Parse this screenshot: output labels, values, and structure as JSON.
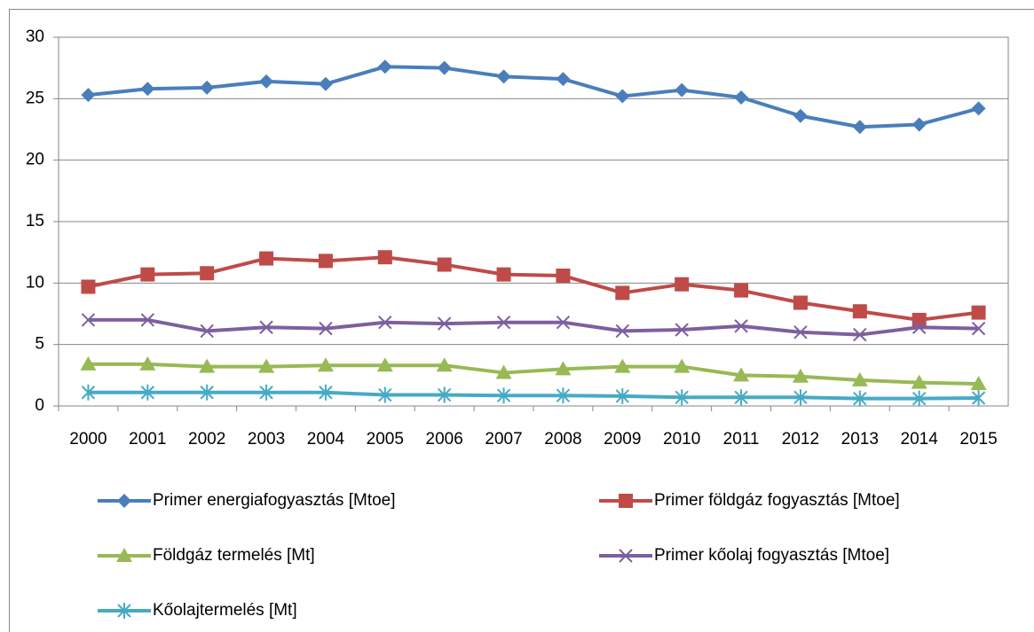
{
  "chart_data": {
    "type": "line",
    "categories": [
      "2000",
      "2001",
      "2002",
      "2003",
      "2004",
      "2005",
      "2006",
      "2007",
      "2008",
      "2009",
      "2010",
      "2011",
      "2012",
      "2013",
      "2014",
      "2015"
    ],
    "series": [
      {
        "name": "Primer energiafogyasztás [Mtoe]",
        "color": "#4a7ebb",
        "marker": "diamond",
        "values": [
          25.3,
          25.8,
          25.9,
          26.4,
          26.2,
          27.6,
          27.5,
          26.8,
          26.6,
          25.2,
          25.7,
          25.1,
          23.6,
          22.7,
          22.9,
          24.2
        ]
      },
      {
        "name": "Primer földgáz fogyasztás [Mtoe]",
        "color": "#be4b48",
        "marker": "square",
        "values": [
          9.7,
          10.7,
          10.8,
          12.0,
          11.8,
          12.1,
          11.5,
          10.7,
          10.6,
          9.2,
          9.9,
          9.4,
          8.4,
          7.7,
          7.0,
          7.6
        ]
      },
      {
        "name": "Földgáz termelés [Mt]",
        "color": "#98b954",
        "marker": "triangle",
        "values": [
          3.4,
          3.4,
          3.2,
          3.2,
          3.3,
          3.3,
          3.3,
          2.7,
          3.0,
          3.2,
          3.2,
          2.5,
          2.4,
          2.1,
          1.9,
          1.8
        ]
      },
      {
        "name": "Primer kőolaj fogyasztás [Mtoe]",
        "color": "#7d5fa0",
        "marker": "x",
        "values": [
          7.0,
          7.0,
          6.1,
          6.4,
          6.3,
          6.8,
          6.7,
          6.8,
          6.8,
          6.1,
          6.2,
          6.5,
          6.0,
          5.8,
          6.4,
          6.3
        ]
      },
      {
        "name": "Kőolajtermelés [Mt]",
        "color": "#46aac5",
        "marker": "asterisk",
        "values": [
          1.1,
          1.1,
          1.1,
          1.1,
          1.1,
          0.9,
          0.9,
          0.85,
          0.85,
          0.8,
          0.7,
          0.7,
          0.7,
          0.6,
          0.6,
          0.65
        ]
      }
    ],
    "ylim": [
      0,
      30
    ],
    "yticks": [
      0,
      5,
      10,
      15,
      20,
      25,
      30
    ],
    "grid": true,
    "legend": "bottom"
  }
}
